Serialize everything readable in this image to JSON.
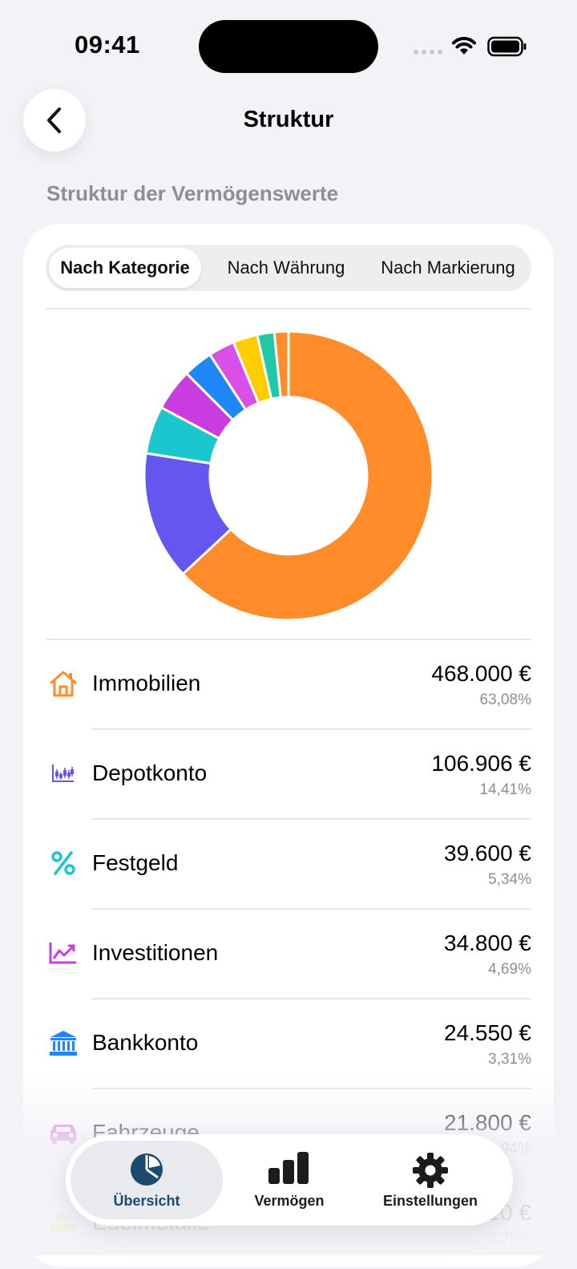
{
  "status_bar": {
    "time": "09:41"
  },
  "nav": {
    "title": "Struktur"
  },
  "section_header": "Struktur der Vermögenswerte",
  "segments": [
    "Nach Kategorie",
    "Nach Währung",
    "Nach Markierung"
  ],
  "chart_data": {
    "type": "pie",
    "title": "",
    "slices": [
      {
        "label": "Immobilien",
        "value": 63.08,
        "color": "#ff8c28"
      },
      {
        "label": "Depotkonto",
        "value": 14.41,
        "color": "#6457f0"
      },
      {
        "label": "Festgeld",
        "value": 5.34,
        "color": "#1cc6cf"
      },
      {
        "label": "Investitionen",
        "value": 4.69,
        "color": "#c83ce0"
      },
      {
        "label": "Bankkonto",
        "value": 3.31,
        "color": "#1e86f5"
      },
      {
        "label": "Fahrzeuge",
        "value": 2.94,
        "color": "#d94fe8"
      },
      {
        "label": "Edelmetalle",
        "value": 2.75,
        "color": "#ffcc00"
      },
      {
        "label": "",
        "value": 1.9,
        "color": "#20c9a5"
      },
      {
        "label": "",
        "value": 1.58,
        "color": "#ff8c28"
      }
    ]
  },
  "rows": [
    {
      "label": "Immobilien",
      "amount": "468.000 €",
      "pct": "63,08%",
      "icon": "house-icon",
      "color": "#ff8c28"
    },
    {
      "label": "Depotkonto",
      "amount": "106.906 €",
      "pct": "14,41%",
      "icon": "candlestick-chart-icon",
      "color": "#6457f0"
    },
    {
      "label": "Festgeld",
      "amount": "39.600 €",
      "pct": "5,34%",
      "icon": "percent-icon",
      "color": "#1cc6cf"
    },
    {
      "label": "Investitionen",
      "amount": "34.800 €",
      "pct": "4,69%",
      "icon": "trend-up-icon",
      "color": "#c83ce0"
    },
    {
      "label": "Bankkonto",
      "amount": "24.550 €",
      "pct": "3,31%",
      "icon": "bank-icon",
      "color": "#1e86f5"
    },
    {
      "label": "Fahrzeuge",
      "amount": "21.800 €",
      "pct": "2,94%",
      "icon": "car-icon",
      "color": "#d94fe8"
    },
    {
      "label": "Edelmetalle",
      "amount": "20.410 €",
      "pct": "2,75%",
      "icon": "gold-bars-icon",
      "color": "#ffcc00"
    }
  ],
  "tabs": [
    {
      "label": "Übersicht",
      "icon": "pie-chart-icon"
    },
    {
      "label": "Vermögen",
      "icon": "bar-chart-icon"
    },
    {
      "label": "Einstellungen",
      "icon": "gear-icon"
    }
  ]
}
